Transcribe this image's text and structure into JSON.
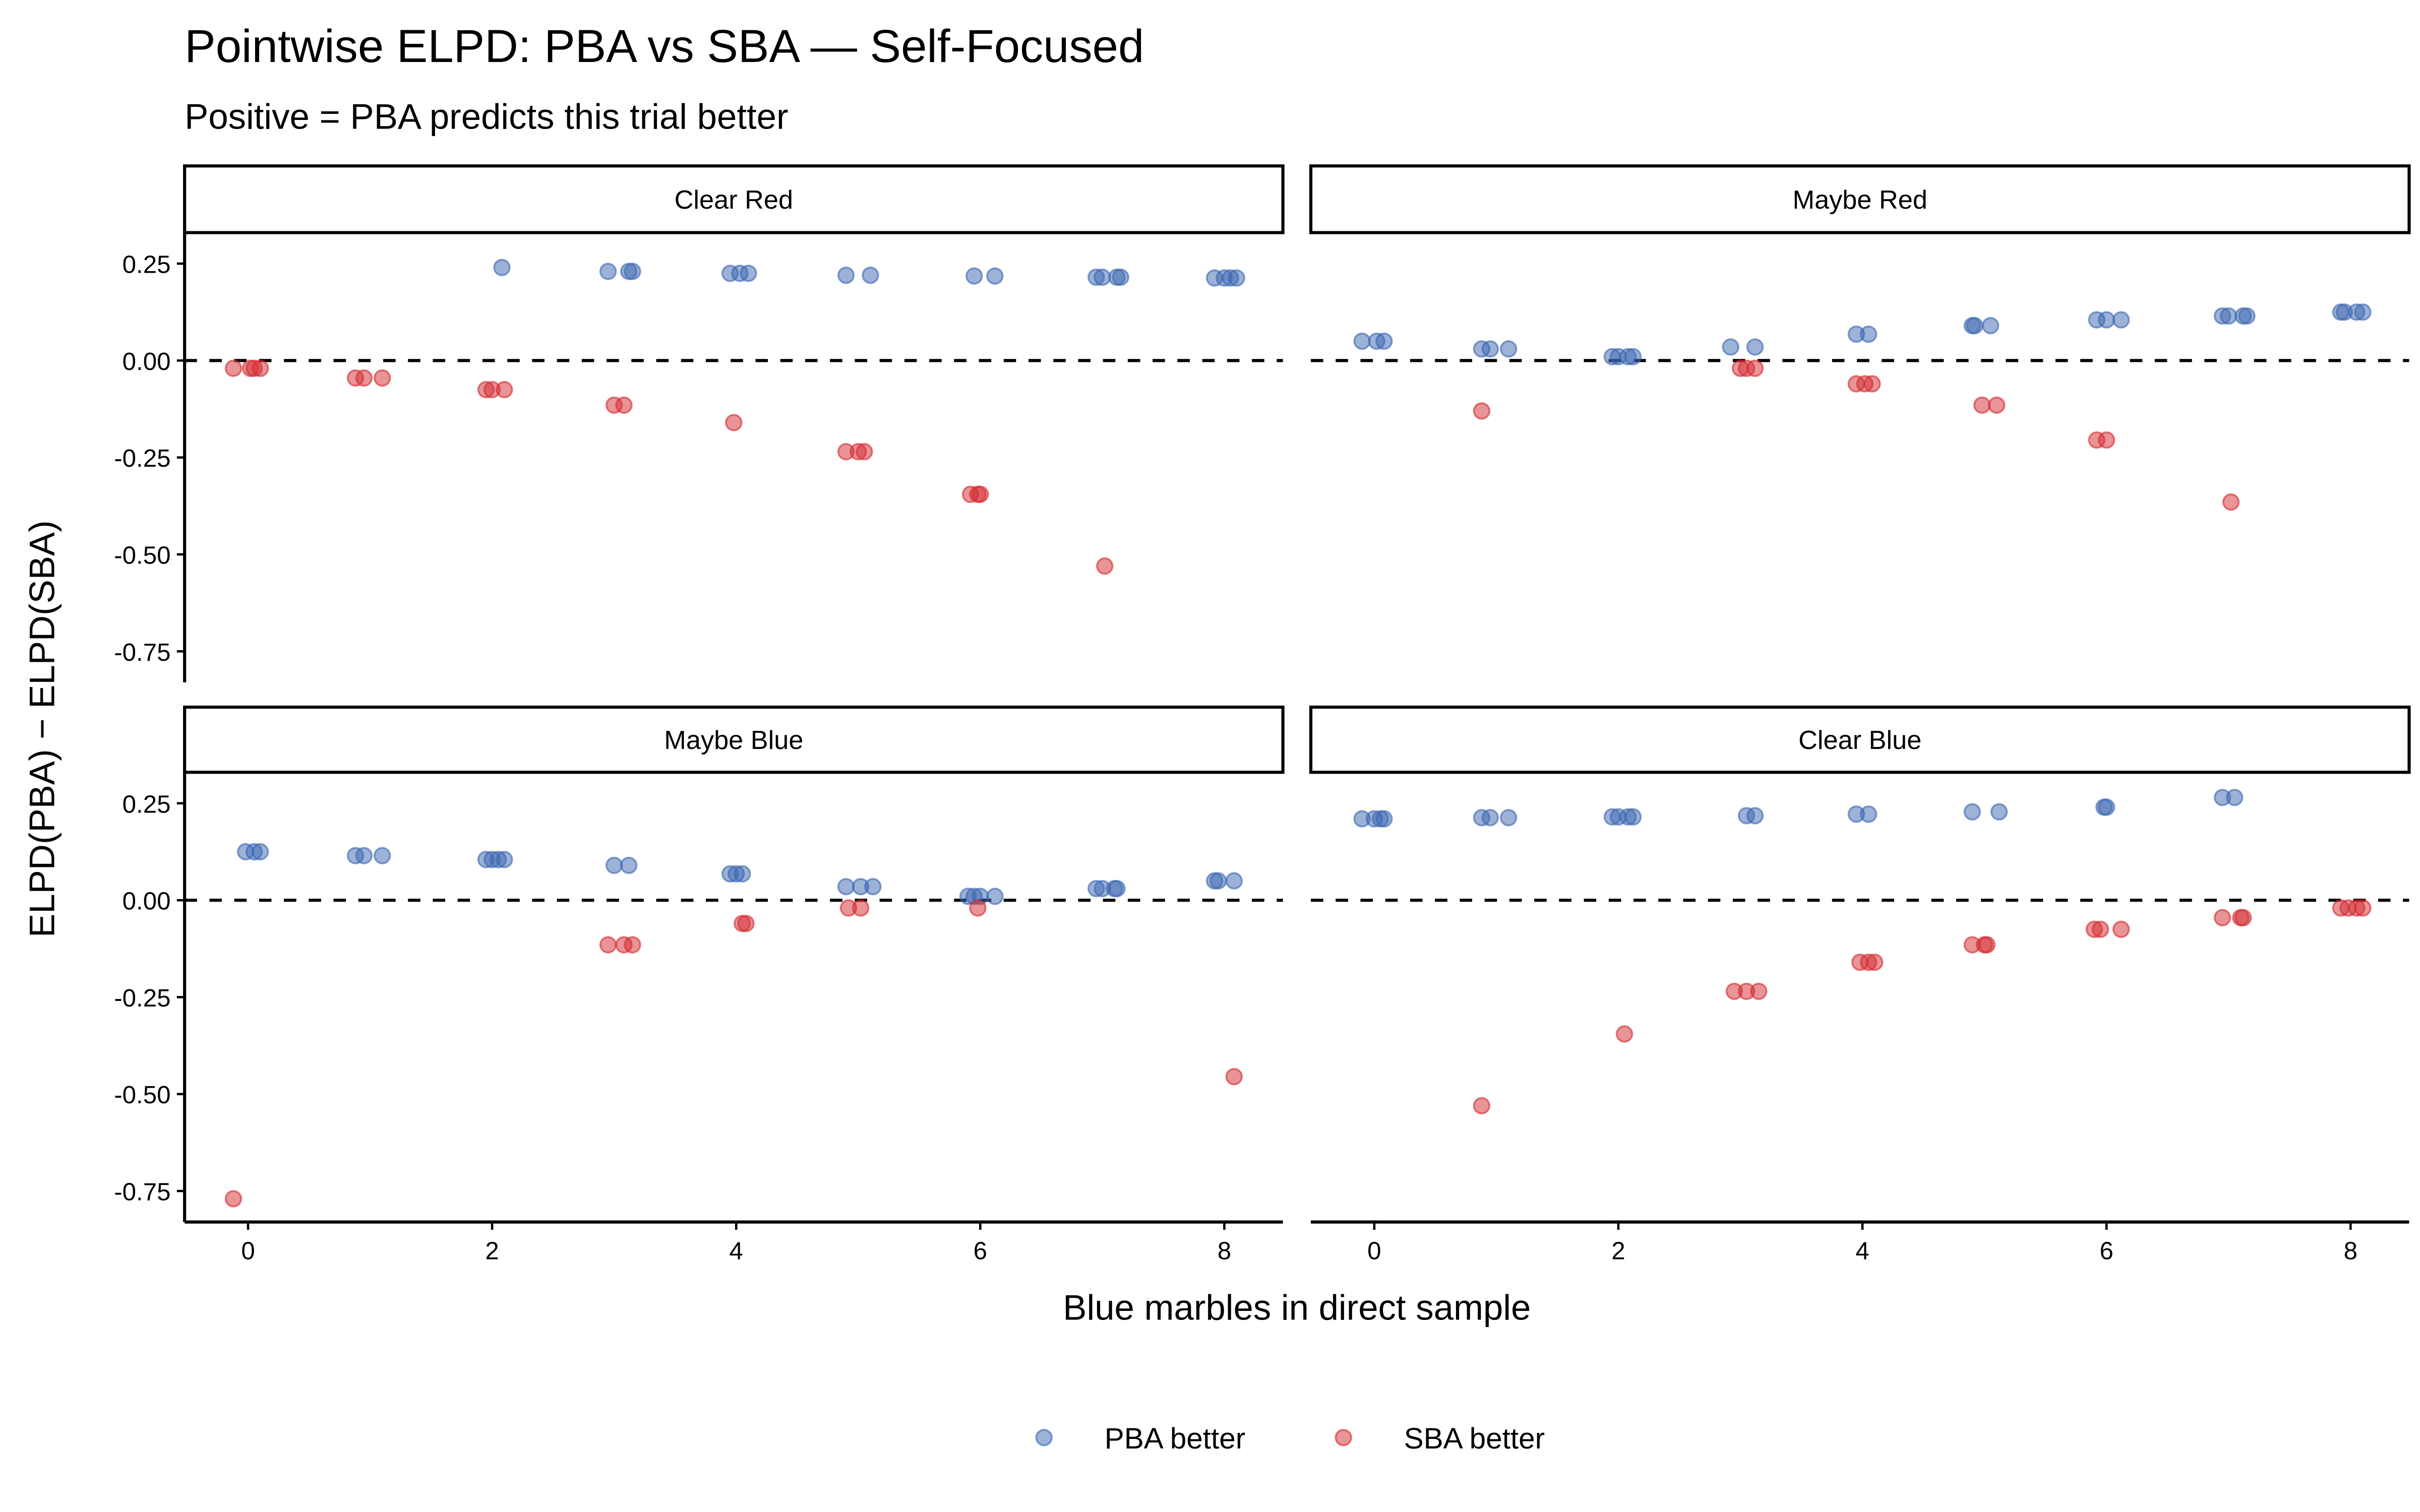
{
  "colors": {
    "pba": "#3a66b0",
    "sba": "#d42a2f"
  },
  "chart_data": {
    "type": "scatter",
    "title": "Pointwise ELPD: PBA vs SBA — Self-Focused",
    "subtitle": "Positive = PBA predicts this trial better",
    "xlabel": "Blue marbles in direct sample",
    "ylabel": "ELPD(PBA) − ELPD(SBA)",
    "xlim": [
      -0.52,
      8.48
    ],
    "ylim": [
      -0.83,
      0.33
    ],
    "x_ticks": [
      0,
      2,
      4,
      6,
      8
    ],
    "y_ticks": [
      0.25,
      0,
      -0.25,
      -0.5,
      -0.75
    ],
    "y_tick_labels": [
      "0.25",
      "0.00",
      "-0.25",
      "-0.50",
      "-0.75"
    ],
    "reference_line": 0,
    "legend": {
      "position": "bottom",
      "entries": [
        "PBA better",
        "SBA better"
      ]
    },
    "panels": [
      {
        "label": "Clear Red",
        "pba": [
          [
            2.08,
            0.24
          ],
          [
            2.95,
            0.23
          ],
          [
            3.12,
            0.23
          ],
          [
            3.15,
            0.23
          ],
          [
            3.95,
            0.225
          ],
          [
            4.03,
            0.225
          ],
          [
            4.1,
            0.225
          ],
          [
            4.9,
            0.22
          ],
          [
            5.1,
            0.22
          ],
          [
            5.95,
            0.218
          ],
          [
            6.12,
            0.218
          ],
          [
            6.95,
            0.215
          ],
          [
            7.0,
            0.215
          ],
          [
            7.12,
            0.215
          ],
          [
            7.15,
            0.215
          ],
          [
            7.92,
            0.213
          ],
          [
            8.0,
            0.213
          ],
          [
            8.05,
            0.213
          ],
          [
            8.1,
            0.213
          ]
        ],
        "sba": [
          [
            -0.12,
            -0.02
          ],
          [
            0.02,
            -0.02
          ],
          [
            0.05,
            -0.02
          ],
          [
            0.1,
            -0.02
          ],
          [
            0.88,
            -0.045
          ],
          [
            0.95,
            -0.045
          ],
          [
            1.1,
            -0.045
          ],
          [
            1.95,
            -0.075
          ],
          [
            2.0,
            -0.075
          ],
          [
            2.1,
            -0.075
          ],
          [
            3.0,
            -0.115
          ],
          [
            3.08,
            -0.115
          ],
          [
            3.98,
            -0.16
          ],
          [
            4.9,
            -0.235
          ],
          [
            5.0,
            -0.235
          ],
          [
            5.05,
            -0.235
          ],
          [
            5.92,
            -0.345
          ],
          [
            5.98,
            -0.345
          ],
          [
            6.0,
            -0.345
          ],
          [
            7.02,
            -0.53
          ]
        ]
      },
      {
        "label": "Maybe Red",
        "pba": [
          [
            -0.1,
            0.05
          ],
          [
            0.02,
            0.05
          ],
          [
            0.08,
            0.05
          ],
          [
            0.88,
            0.03
          ],
          [
            0.95,
            0.03
          ],
          [
            1.1,
            0.03
          ],
          [
            1.95,
            0.01
          ],
          [
            2.0,
            0.01
          ],
          [
            2.08,
            0.01
          ],
          [
            2.12,
            0.01
          ],
          [
            2.92,
            0.035
          ],
          [
            3.12,
            0.035
          ],
          [
            3.95,
            0.068
          ],
          [
            4.05,
            0.068
          ],
          [
            4.9,
            0.09
          ],
          [
            4.92,
            0.09
          ],
          [
            5.05,
            0.09
          ],
          [
            5.92,
            0.105
          ],
          [
            6.0,
            0.105
          ],
          [
            6.12,
            0.105
          ],
          [
            6.95,
            0.115
          ],
          [
            7.0,
            0.115
          ],
          [
            7.12,
            0.115
          ],
          [
            7.15,
            0.115
          ],
          [
            7.92,
            0.125
          ],
          [
            7.95,
            0.125
          ],
          [
            8.05,
            0.125
          ],
          [
            8.1,
            0.125
          ]
        ],
        "sba": [
          [
            0.88,
            -0.13
          ],
          [
            3.0,
            -0.02
          ],
          [
            3.05,
            -0.02
          ],
          [
            3.12,
            -0.02
          ],
          [
            3.95,
            -0.06
          ],
          [
            4.02,
            -0.06
          ],
          [
            4.08,
            -0.06
          ],
          [
            4.98,
            -0.115
          ],
          [
            5.1,
            -0.115
          ],
          [
            5.92,
            -0.205
          ],
          [
            6.0,
            -0.205
          ],
          [
            7.02,
            -0.365
          ]
        ]
      },
      {
        "label": "Maybe Blue",
        "pba": [
          [
            -0.02,
            0.125
          ],
          [
            0.05,
            0.125
          ],
          [
            0.1,
            0.125
          ],
          [
            0.88,
            0.115
          ],
          [
            0.95,
            0.115
          ],
          [
            1.1,
            0.115
          ],
          [
            1.95,
            0.105
          ],
          [
            2.0,
            0.105
          ],
          [
            2.05,
            0.105
          ],
          [
            2.1,
            0.105
          ],
          [
            3.0,
            0.09
          ],
          [
            3.12,
            0.09
          ],
          [
            3.95,
            0.068
          ],
          [
            4.0,
            0.068
          ],
          [
            4.05,
            0.068
          ],
          [
            4.9,
            0.035
          ],
          [
            5.02,
            0.035
          ],
          [
            5.12,
            0.035
          ],
          [
            5.9,
            0.01
          ],
          [
            5.95,
            0.01
          ],
          [
            6.0,
            0.01
          ],
          [
            6.12,
            0.01
          ],
          [
            6.95,
            0.03
          ],
          [
            7.0,
            0.03
          ],
          [
            7.1,
            0.03
          ],
          [
            7.12,
            0.03
          ],
          [
            7.92,
            0.05
          ],
          [
            7.95,
            0.05
          ],
          [
            8.08,
            0.05
          ]
        ],
        "sba": [
          [
            -0.12,
            -0.77
          ],
          [
            2.95,
            -0.115
          ],
          [
            3.08,
            -0.115
          ],
          [
            3.15,
            -0.115
          ],
          [
            4.05,
            -0.06
          ],
          [
            4.08,
            -0.06
          ],
          [
            4.92,
            -0.02
          ],
          [
            5.02,
            -0.02
          ],
          [
            5.98,
            -0.02
          ],
          [
            8.08,
            -0.455
          ]
        ]
      },
      {
        "label": "Clear Blue",
        "pba": [
          [
            -0.1,
            0.21
          ],
          [
            0.0,
            0.21
          ],
          [
            0.05,
            0.21
          ],
          [
            0.08,
            0.21
          ],
          [
            0.88,
            0.213
          ],
          [
            0.95,
            0.213
          ],
          [
            1.1,
            0.213
          ],
          [
            1.95,
            0.215
          ],
          [
            2.0,
            0.215
          ],
          [
            2.08,
            0.215
          ],
          [
            2.12,
            0.215
          ],
          [
            3.05,
            0.218
          ],
          [
            3.12,
            0.218
          ],
          [
            3.95,
            0.222
          ],
          [
            4.05,
            0.222
          ],
          [
            4.9,
            0.228
          ],
          [
            5.12,
            0.228
          ],
          [
            5.98,
            0.24
          ],
          [
            6.0,
            0.24
          ],
          [
            6.95,
            0.265
          ],
          [
            7.05,
            0.265
          ]
        ],
        "sba": [
          [
            0.88,
            -0.53
          ],
          [
            2.05,
            -0.345
          ],
          [
            2.95,
            -0.235
          ],
          [
            3.05,
            -0.235
          ],
          [
            3.15,
            -0.235
          ],
          [
            3.98,
            -0.16
          ],
          [
            4.05,
            -0.16
          ],
          [
            4.1,
            -0.16
          ],
          [
            4.9,
            -0.115
          ],
          [
            5.0,
            -0.115
          ],
          [
            5.02,
            -0.115
          ],
          [
            5.9,
            -0.075
          ],
          [
            5.95,
            -0.075
          ],
          [
            6.12,
            -0.075
          ],
          [
            6.95,
            -0.045
          ],
          [
            7.1,
            -0.045
          ],
          [
            7.12,
            -0.045
          ],
          [
            7.92,
            -0.02
          ],
          [
            7.98,
            -0.02
          ],
          [
            8.05,
            -0.02
          ],
          [
            8.1,
            -0.02
          ]
        ]
      }
    ]
  }
}
